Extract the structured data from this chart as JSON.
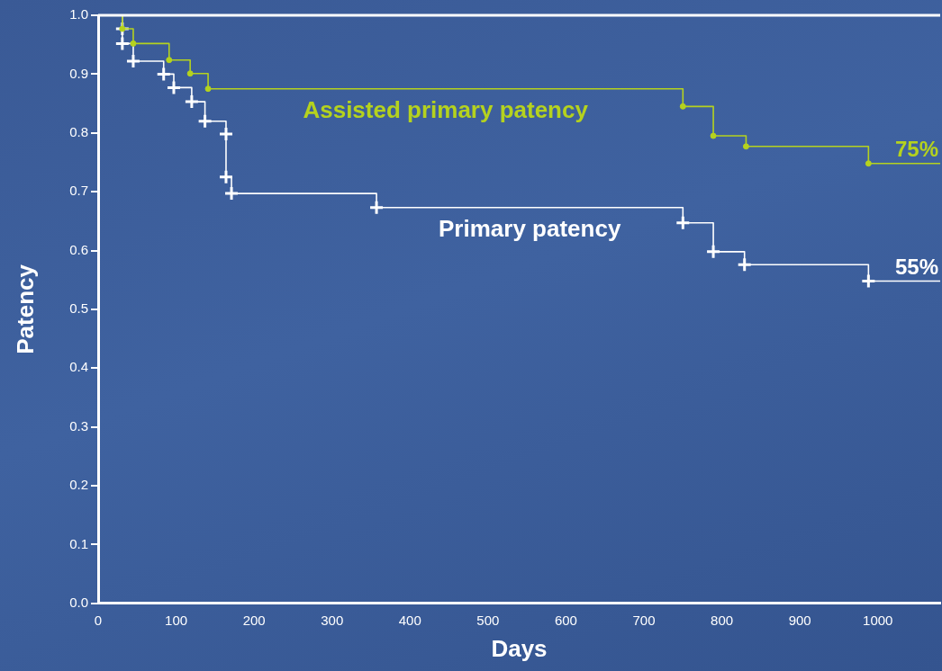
{
  "chart_data": {
    "type": "step",
    "xlabel": "Days",
    "ylabel": "Patency",
    "xlim": [
      0,
      1080
    ],
    "xticks": [
      0,
      100,
      200,
      300,
      400,
      500,
      600,
      700,
      800,
      900,
      1000
    ],
    "ylim": [
      0,
      1
    ],
    "yticks": [
      {
        "value": 0,
        "label": "0.0"
      },
      {
        "value": 0.1,
        "label": "0.1"
      },
      {
        "value": 0.2,
        "label": "0.2"
      },
      {
        "value": 0.3,
        "label": "0.3"
      },
      {
        "value": 0.4,
        "label": "0.4"
      },
      {
        "value": 0.5,
        "label": "0.5"
      },
      {
        "value": 0.6,
        "label": "0.6"
      },
      {
        "value": 0.7,
        "label": "0.7"
      },
      {
        "value": 0.8,
        "label": "0.8"
      },
      {
        "value": 0.9,
        "label": "0.9"
      },
      {
        "value": 1,
        "label": "1.0"
      }
    ],
    "grid": false,
    "legend": false,
    "series": [
      {
        "name": "Assisted primary patency",
        "color": "#b5d21e",
        "marker": "circle",
        "x": [
          31,
          31,
          45,
          91,
          118,
          141,
          750,
          789,
          831,
          988,
          1080
        ],
        "values": [
          1.0,
          0.977,
          0.952,
          0.924,
          0.901,
          0.875,
          0.845,
          0.795,
          0.777,
          0.748,
          0.748
        ]
      },
      {
        "name": "Primary patency",
        "color": "#ffffff",
        "marker": "cross",
        "x": [
          31,
          31,
          31,
          45,
          84,
          97,
          120,
          137,
          164,
          164,
          171,
          357,
          750,
          789,
          829,
          988,
          1080
        ],
        "values": [
          1.0,
          0.977,
          0.952,
          0.922,
          0.9,
          0.877,
          0.853,
          0.82,
          0.798,
          0.725,
          0.697,
          0.673,
          0.647,
          0.598,
          0.576,
          0.548,
          0.548
        ]
      }
    ],
    "annotations": [
      "75%",
      "55%"
    ]
  }
}
